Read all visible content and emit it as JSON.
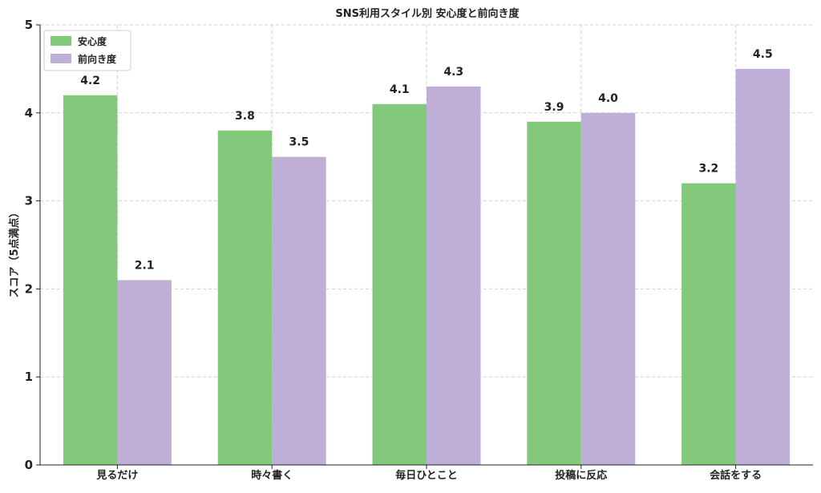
{
  "chart_data": {
    "type": "bar",
    "title": "SNS利用スタイル別 安心度と前向き度",
    "xlabel": "",
    "ylabel": "スコア（5点満点）",
    "categories": [
      "見るだけ",
      "時々書く",
      "毎日ひとこと",
      "投稿に反応",
      "会話をする"
    ],
    "series": [
      {
        "name": "安心度",
        "color": "#82c97c",
        "values": [
          4.2,
          3.8,
          4.1,
          3.9,
          3.2
        ]
      },
      {
        "name": "前向き度",
        "color": "#bfaed6",
        "values": [
          2.1,
          3.5,
          4.3,
          4.0,
          4.5
        ]
      }
    ],
    "ylim": [
      0,
      5
    ],
    "yticks": [
      0,
      1,
      2,
      3,
      4,
      5
    ],
    "grid": true,
    "legend_position": "top-left"
  }
}
